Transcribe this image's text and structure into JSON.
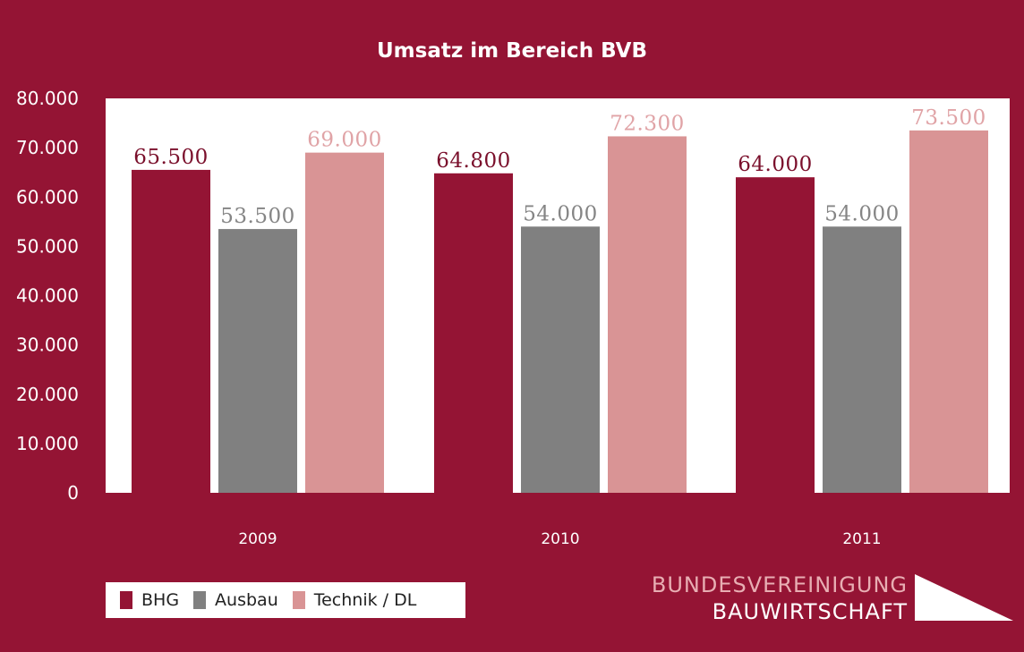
{
  "chart_data": {
    "type": "bar",
    "title": "Umsatz im Bereich BVB",
    "xlabel": "",
    "ylabel": "",
    "categories": [
      "2009",
      "2010",
      "2011"
    ],
    "series": [
      {
        "name": "BHG",
        "color": "#941434",
        "label_color": "#7a0f2b",
        "values": [
          65500,
          64800,
          64000
        ],
        "labels": [
          "65.500",
          "64.800",
          "64.000"
        ]
      },
      {
        "name": "Ausbau",
        "color": "#808080",
        "label_color": "#858585",
        "values": [
          53500,
          54000,
          54000
        ],
        "labels": [
          "53.500",
          "54.000",
          "54.000"
        ]
      },
      {
        "name": "Technik / DL",
        "color": "#d99495",
        "label_color": "#e0a3a6",
        "values": [
          69000,
          72300,
          73500
        ],
        "labels": [
          "69.000",
          "72.300",
          "73.500"
        ]
      }
    ],
    "ylim": [
      0,
      80000
    ],
    "yticks": [
      0,
      10000,
      20000,
      30000,
      40000,
      50000,
      60000,
      70000,
      80000
    ],
    "ytick_labels": [
      "0",
      "10.000",
      "20.000",
      "30.000",
      "40.000",
      "50.000",
      "60.000",
      "70.000",
      "80.000"
    ],
    "grid": false,
    "legend": "bottom-left"
  },
  "logo": {
    "line1": "BUNDESVEREINIGUNG",
    "line2": "BAUWIRTSCHAFT"
  },
  "colors": {
    "background": "#941434",
    "plot_background": "#ffffff"
  }
}
